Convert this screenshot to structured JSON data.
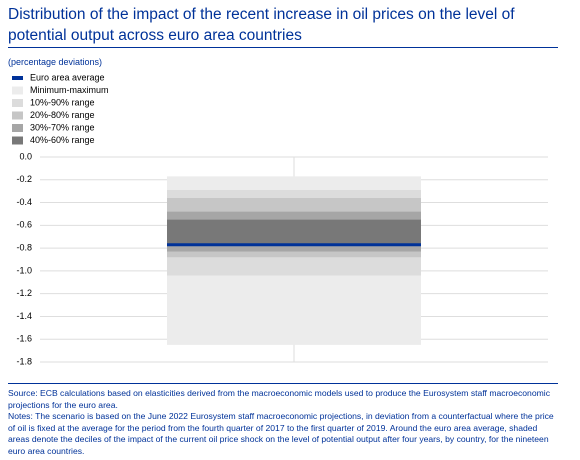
{
  "chart_data": {
    "type": "range",
    "title": "Distribution of the impact of the recent increase in oil prices on the level of potential output across euro area countries",
    "subtitle": "(percentage deviations)",
    "categories": [
      null
    ],
    "series": [
      {
        "name": "Euro area average",
        "color": "#003299",
        "values": [
          -0.77
        ]
      }
    ],
    "ranges": [
      {
        "name": "Minimum-maximum",
        "color": "#ececec",
        "low": [
          -1.65
        ],
        "high": [
          -0.17
        ]
      },
      {
        "name": "10%-90% range",
        "color": "#dcdcdc",
        "low": [
          -1.04
        ],
        "high": [
          -0.29
        ]
      },
      {
        "name": "20%-80% range",
        "color": "#c6c6c6",
        "low": [
          -0.88
        ],
        "high": [
          -0.36
        ]
      },
      {
        "name": "30%-70% range",
        "color": "#a6a6a6",
        "low": [
          -0.83
        ],
        "high": [
          -0.48
        ]
      },
      {
        "name": "40%-60% range",
        "color": "#787878",
        "low": [
          -0.78
        ],
        "high": [
          -0.55
        ]
      }
    ],
    "ylim": [
      -1.8,
      0
    ],
    "yticks": [
      {
        "value": 0,
        "label": "0.0"
      },
      -0.2,
      -0.4,
      -0.6,
      -0.8,
      {
        "value": -1,
        "label": "-1.0"
      },
      -1.2,
      -1.4,
      -1.6,
      -1.8
    ],
    "grid": true,
    "notes": [
      "Source: ECB calculations based on elasticities derived from the macroeconomic models used to produce the Eurosystem staff macroeconomic projections for the euro area.",
      "Notes: The scenario is based on the June 2022 Eurosystem staff macroeconomic projections, in deviation from a counterfactual where the price of oil is fixed at the average for the period from the fourth quarter of 2017 to the first quarter of 2019. Around the euro area average, shaded areas denote the deciles of the impact of the current oil price shock on the level of potential output after four years, by country, for the nineteen euro area countries."
    ]
  }
}
